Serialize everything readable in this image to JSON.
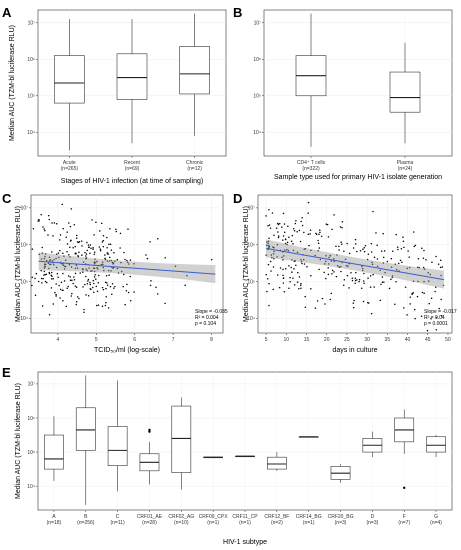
{
  "chart_data": [
    {
      "panel": "A",
      "type": "box",
      "xlabel": "Stages of HIV-1 infection (at time of sampling)",
      "ylabel": "Median AUC (TZM-bl luciferase RLU)",
      "ylog": true,
      "ylim_log10": [
        3.35,
        7.35
      ],
      "yticks": [
        {
          "v": 4,
          "label": "10⁴"
        },
        {
          "v": 5,
          "label": "10⁵"
        },
        {
          "v": 6,
          "label": "10⁶"
        },
        {
          "v": 7,
          "label": "10⁷"
        }
      ],
      "categories": [
        {
          "name": "Acute",
          "n": "(n=265)"
        },
        {
          "name": "Recent",
          "n": "(n=69)"
        },
        {
          "name": "Chronic",
          "n": "(n=12)"
        }
      ],
      "boxes": [
        {
          "min": 3.5,
          "q1": 4.8,
          "median": 5.35,
          "q3": 6.1,
          "max": 7.1
        },
        {
          "min": 3.7,
          "q1": 4.9,
          "median": 5.5,
          "q3": 6.15,
          "max": 7.1
        },
        {
          "min": 3.9,
          "q1": 5.05,
          "median": 5.6,
          "q3": 6.35,
          "max": 7.25
        }
      ],
      "points": []
    },
    {
      "panel": "B",
      "type": "box",
      "xlabel": "Sample type used for primary HIV-1 isolate generation",
      "ylabel": "",
      "ylog": true,
      "ylim_log10": [
        3.35,
        7.35
      ],
      "yticks": [
        {
          "v": 4,
          "label": "10⁴"
        },
        {
          "v": 5,
          "label": "10⁵"
        },
        {
          "v": 6,
          "label": "10⁶"
        },
        {
          "v": 7,
          "label": "10⁷"
        }
      ],
      "categories": [
        {
          "name": "CD4⁺ T cells",
          "n": "(n=322)"
        },
        {
          "name": "Plasma",
          "n": "(n=24)"
        }
      ],
      "boxes": [
        {
          "min": 3.6,
          "q1": 5.0,
          "median": 5.55,
          "q3": 6.1,
          "max": 7.25
        },
        {
          "min": 3.7,
          "q1": 4.55,
          "median": 4.95,
          "q3": 5.65,
          "max": 6.45
        }
      ],
      "points": []
    },
    {
      "panel": "C",
      "type": "scatter",
      "xlabel": "TCID₅₀/ml (log-scale)",
      "ylabel": "Median AUC (TZM-bl luciferase RLU)",
      "xlim": [
        3.3,
        8.3
      ],
      "ylim_log10": [
        3.6,
        7.35
      ],
      "xticks": [
        4,
        5,
        6,
        7,
        8
      ],
      "yticks": [
        {
          "v": 4,
          "label": "10⁴"
        },
        {
          "v": 5,
          "label": "10⁵"
        },
        {
          "v": 6,
          "label": "10⁶"
        },
        {
          "v": 7,
          "label": "10⁷"
        }
      ],
      "trend": {
        "x": [
          3.5,
          8.1
        ],
        "y": [
          5.55,
          5.2
        ]
      },
      "stats": [
        "Slope = -0.085",
        "R² = 0.004",
        "p = 0.104"
      ]
    },
    {
      "panel": "D",
      "type": "scatter",
      "xlabel": "days in culture",
      "ylabel": "Median AUC (TZM-bl luciferase RLU)",
      "xlim": [
        3,
        51
      ],
      "ylim_log10": [
        3.6,
        7.35
      ],
      "xticks": [
        5,
        10,
        15,
        20,
        25,
        30,
        35,
        40,
        45,
        50
      ],
      "yticks": [
        {
          "v": 4,
          "label": "10⁴"
        },
        {
          "v": 5,
          "label": "10⁵"
        },
        {
          "v": 6,
          "label": "10⁶"
        },
        {
          "v": 7,
          "label": "10⁷"
        }
      ],
      "trend": {
        "x": [
          5,
          49
        ],
        "y": [
          5.9,
          5.05
        ]
      },
      "stats": [
        "Slope = -0.017",
        "R² = 0.04",
        "p = 0.0001"
      ]
    },
    {
      "panel": "E",
      "type": "box",
      "xlabel": "HIV-1 subtype",
      "ylabel": "Median AUC (TZM-bl luciferase RLU)",
      "ylog": true,
      "ylim_log10": [
        3.3,
        7.35
      ],
      "yticks": [
        {
          "v": 4,
          "label": "10⁴"
        },
        {
          "v": 5,
          "label": "10⁵"
        },
        {
          "v": 6,
          "label": "10⁶"
        },
        {
          "v": 7,
          "label": "10⁷"
        }
      ],
      "categories": [
        {
          "name": "A",
          "n": "(n=18)"
        },
        {
          "name": "B",
          "n": "(n=256)"
        },
        {
          "name": "C",
          "n": "(n=11)"
        },
        {
          "name": "CRF01_AE",
          "n": "(n=28)"
        },
        {
          "name": "CRF02_AG",
          "n": "(n=10)"
        },
        {
          "name": "CRF09_CPX",
          "n": "(n=1)"
        },
        {
          "name": "CRF11_CP",
          "n": "(n=1)"
        },
        {
          "name": "CRF12_BF",
          "n": "(n=2)"
        },
        {
          "name": "CRF14_BG",
          "n": "(n=1)"
        },
        {
          "name": "CRF20_BG",
          "n": "(n=3)"
        },
        {
          "name": "D",
          "n": "(n=3)"
        },
        {
          "name": "F",
          "n": "(n=7)"
        },
        {
          "name": "G",
          "n": "(n=4)"
        }
      ],
      "boxes": [
        {
          "min": 4.15,
          "q1": 4.5,
          "median": 4.8,
          "q3": 5.5,
          "max": 6.05
        },
        {
          "min": 3.45,
          "q1": 5.05,
          "median": 5.65,
          "q3": 6.3,
          "max": 7.25
        },
        {
          "min": 3.85,
          "q1": 4.6,
          "median": 5.05,
          "q3": 5.75,
          "max": 7.1
        },
        {
          "min": 4.05,
          "q1": 4.45,
          "median": 4.7,
          "q3": 4.95,
          "max": 5.3
        },
        {
          "min": 3.9,
          "q1": 4.4,
          "median": 5.4,
          "q3": 6.35,
          "max": 6.6
        },
        {
          "min": 4.85,
          "q1": 4.85,
          "median": 4.85,
          "q3": 4.85,
          "max": 4.85
        },
        {
          "min": 4.88,
          "q1": 4.88,
          "median": 4.88,
          "q3": 4.88,
          "max": 4.88
        },
        {
          "min": 4.45,
          "q1": 4.5,
          "median": 4.65,
          "q3": 4.85,
          "max": 5.0
        },
        {
          "min": 5.45,
          "q1": 5.45,
          "median": 5.45,
          "q3": 5.45,
          "max": 5.45
        },
        {
          "min": 4.1,
          "q1": 4.2,
          "median": 4.38,
          "q3": 4.58,
          "max": 4.65
        },
        {
          "min": 4.85,
          "q1": 5.0,
          "median": 5.2,
          "q3": 5.4,
          "max": 5.6
        },
        {
          "min": 4.95,
          "q1": 5.3,
          "median": 5.65,
          "q3": 6.0,
          "max": 6.25
        },
        {
          "min": 4.85,
          "q1": 5.0,
          "median": 5.2,
          "q3": 5.45,
          "max": 5.5
        }
      ],
      "points": [
        {
          "cat": 3,
          "y": 5.6
        },
        {
          "cat": 3,
          "y": 5.65
        },
        {
          "cat": 11,
          "y": 3.95
        }
      ]
    }
  ]
}
